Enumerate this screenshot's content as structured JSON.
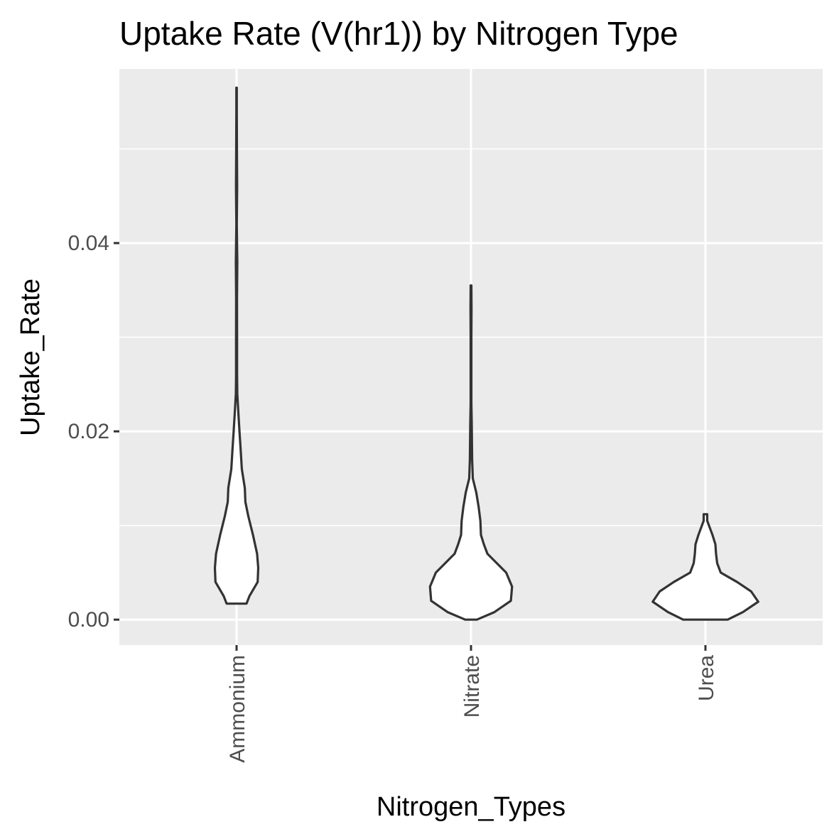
{
  "chart_data": {
    "type": "violin",
    "title": "Uptake Rate (V(hr1)) by Nitrogen Type",
    "xlabel": "Nitrogen_Types",
    "ylabel": "Uptake_Rate",
    "categories": [
      "Ammonium",
      "Nitrate",
      "Urea"
    ],
    "ylim": [
      -0.0027,
      0.0585
    ],
    "yticks": [
      0.0,
      0.02,
      0.04
    ],
    "ytick_labels": [
      "0.00",
      "0.02",
      "0.04"
    ],
    "grid": true,
    "colors": {
      "panel": "#ebebeb",
      "fill": "#ffffff",
      "outline": "#333333"
    },
    "violins": [
      {
        "category": "Ammonium",
        "profile": [
          [
            0.0017,
            0.085
          ],
          [
            0.0025,
            0.11
          ],
          [
            0.004,
            0.18
          ],
          [
            0.0055,
            0.185
          ],
          [
            0.007,
            0.175
          ],
          [
            0.009,
            0.14
          ],
          [
            0.011,
            0.1
          ],
          [
            0.0125,
            0.075
          ],
          [
            0.014,
            0.07
          ],
          [
            0.016,
            0.045
          ],
          [
            0.018,
            0.035
          ],
          [
            0.02,
            0.025
          ],
          [
            0.022,
            0.015
          ],
          [
            0.024,
            0.006
          ],
          [
            0.026,
            0.004
          ],
          [
            0.03,
            0.004
          ],
          [
            0.034,
            0.0035
          ],
          [
            0.038,
            0.006
          ],
          [
            0.042,
            0.002
          ],
          [
            0.046,
            0.005
          ],
          [
            0.05,
            0.003
          ],
          [
            0.054,
            0.002
          ],
          [
            0.0565,
            0.002
          ]
        ]
      },
      {
        "category": "Nitrate",
        "profile": [
          [
            0.0,
            0.05
          ],
          [
            0.0008,
            0.2
          ],
          [
            0.002,
            0.34
          ],
          [
            0.0035,
            0.35
          ],
          [
            0.005,
            0.3
          ],
          [
            0.006,
            0.22
          ],
          [
            0.007,
            0.14
          ],
          [
            0.008,
            0.11
          ],
          [
            0.009,
            0.085
          ],
          [
            0.0105,
            0.08
          ],
          [
            0.012,
            0.065
          ],
          [
            0.0135,
            0.045
          ],
          [
            0.015,
            0.015
          ],
          [
            0.017,
            0.01
          ],
          [
            0.019,
            0.008
          ],
          [
            0.021,
            0.006
          ],
          [
            0.023,
            0.003
          ],
          [
            0.026,
            0.003
          ],
          [
            0.03,
            0.003
          ],
          [
            0.033,
            0.004
          ],
          [
            0.0355,
            0.003
          ]
        ]
      },
      {
        "category": "Urea",
        "profile": [
          [
            0.0,
            0.19
          ],
          [
            0.0008,
            0.32
          ],
          [
            0.0019,
            0.45
          ],
          [
            0.003,
            0.39
          ],
          [
            0.004,
            0.27
          ],
          [
            0.005,
            0.13
          ],
          [
            0.006,
            0.1
          ],
          [
            0.007,
            0.09
          ],
          [
            0.008,
            0.085
          ],
          [
            0.009,
            0.06
          ],
          [
            0.0105,
            0.015
          ],
          [
            0.0112,
            0.015
          ]
        ]
      }
    ]
  }
}
